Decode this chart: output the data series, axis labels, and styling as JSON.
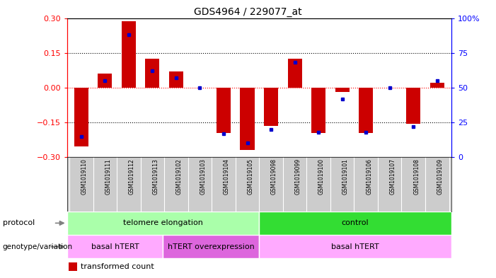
{
  "title": "GDS4964 / 229077_at",
  "samples": [
    "GSM1019110",
    "GSM1019111",
    "GSM1019112",
    "GSM1019113",
    "GSM1019102",
    "GSM1019103",
    "GSM1019104",
    "GSM1019105",
    "GSM1019098",
    "GSM1019099",
    "GSM1019100",
    "GSM1019101",
    "GSM1019106",
    "GSM1019107",
    "GSM1019108",
    "GSM1019109"
  ],
  "transformed_count": [
    -0.255,
    0.06,
    0.285,
    0.125,
    0.07,
    0.0,
    -0.195,
    -0.27,
    -0.165,
    0.125,
    -0.195,
    -0.02,
    -0.195,
    0.0,
    -0.155,
    0.02
  ],
  "percentile_rank": [
    15,
    55,
    88,
    62,
    57,
    50,
    17,
    10,
    20,
    68,
    18,
    42,
    18,
    50,
    22,
    55
  ],
  "ylim_left": [
    -0.3,
    0.3
  ],
  "ylim_right": [
    0,
    100
  ],
  "yticks_left": [
    -0.3,
    -0.15,
    0.0,
    0.15,
    0.3
  ],
  "yticks_right": [
    0,
    25,
    50,
    75,
    100
  ],
  "protocol_groups": [
    {
      "label": "telomere elongation",
      "start": 0,
      "end": 7,
      "color": "#aaffaa"
    },
    {
      "label": "control",
      "start": 8,
      "end": 15,
      "color": "#33dd33"
    }
  ],
  "genotype_groups": [
    {
      "label": "basal hTERT",
      "start": 0,
      "end": 3,
      "color": "#ffaaff"
    },
    {
      "label": "hTERT overexpression",
      "start": 4,
      "end": 7,
      "color": "#dd66dd"
    },
    {
      "label": "basal hTERT",
      "start": 8,
      "end": 15,
      "color": "#ffaaff"
    }
  ],
  "bar_color": "#cc0000",
  "dot_color": "#0000cc",
  "background_color": "#ffffff",
  "tick_label_area_color": "#cccccc",
  "bar_width": 0.6
}
